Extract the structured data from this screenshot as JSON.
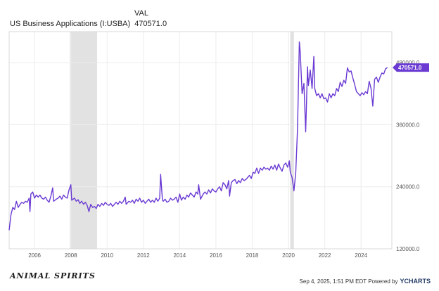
{
  "header": {
    "column_label": "VAL",
    "series_name": "US Business Applications (I:USBA)",
    "series_value": "470571.0"
  },
  "footer": {
    "brand_logo_text": "ANIMAL SPIRITS",
    "timestamp": "Sep 4, 2025, 1:51 PM EDT",
    "powered_by": "Powered by",
    "provider": "YCHARTS"
  },
  "colors": {
    "line": "#6a3ad3",
    "recession_shade": "#e2e2e2",
    "grid": "#ececec",
    "badge_bg": "#6a3ad3",
    "badge_text": "#ffffff"
  },
  "chart_data": {
    "type": "line",
    "title": "",
    "xlabel": "",
    "ylabel": "",
    "xlim": [
      2004.6,
      2025.7
    ],
    "ylim": [
      120000,
      540000
    ],
    "x_ticks": [
      "2006",
      "2008",
      "2010",
      "2012",
      "2014",
      "2016",
      "2018",
      "2020",
      "2022",
      "2024"
    ],
    "x_tick_values": [
      2006,
      2008,
      2010,
      2012,
      2014,
      2016,
      2018,
      2020,
      2022,
      2024
    ],
    "y_ticks": [
      "120000.0",
      "240000.0",
      "360000.0",
      "480000.0"
    ],
    "y_tick_values": [
      120000,
      240000,
      360000,
      480000
    ],
    "grid": true,
    "last_value_label": "470571.0",
    "last_value": 470571,
    "shaded_regions": [
      {
        "start": 2007.95,
        "end": 2009.45
      },
      {
        "start": 2020.1,
        "end": 2020.3
      }
    ],
    "series": [
      {
        "points": [
          [
            2004.6,
            156000
          ],
          [
            2004.7,
            186000
          ],
          [
            2004.8,
            200000
          ],
          [
            2004.9,
            196000
          ],
          [
            2005.0,
            212000
          ],
          [
            2005.1,
            200000
          ],
          [
            2005.2,
            206000
          ],
          [
            2005.3,
            210000
          ],
          [
            2005.4,
            208000
          ],
          [
            2005.5,
            212000
          ],
          [
            2005.6,
            210000
          ],
          [
            2005.7,
            218000
          ],
          [
            2005.75,
            192000
          ],
          [
            2005.8,
            226000
          ],
          [
            2005.9,
            230000
          ],
          [
            2006.0,
            218000
          ],
          [
            2006.1,
            224000
          ],
          [
            2006.2,
            220000
          ],
          [
            2006.3,
            224000
          ],
          [
            2006.4,
            218000
          ],
          [
            2006.5,
            216000
          ],
          [
            2006.6,
            220000
          ],
          [
            2006.7,
            214000
          ],
          [
            2006.8,
            210000
          ],
          [
            2006.9,
            222000
          ],
          [
            2007.0,
            238000
          ],
          [
            2007.05,
            212000
          ],
          [
            2007.2,
            216000
          ],
          [
            2007.3,
            218000
          ],
          [
            2007.4,
            222000
          ],
          [
            2007.5,
            216000
          ],
          [
            2007.6,
            224000
          ],
          [
            2007.7,
            220000
          ],
          [
            2007.8,
            218000
          ],
          [
            2007.9,
            234000
          ],
          [
            2008.0,
            244000
          ],
          [
            2008.05,
            214000
          ],
          [
            2008.2,
            218000
          ],
          [
            2008.3,
            212000
          ],
          [
            2008.4,
            215000
          ],
          [
            2008.5,
            208000
          ],
          [
            2008.6,
            212000
          ],
          [
            2008.7,
            206000
          ],
          [
            2008.8,
            210000
          ],
          [
            2008.9,
            204000
          ],
          [
            2009.0,
            192000
          ],
          [
            2009.1,
            206000
          ],
          [
            2009.2,
            200000
          ],
          [
            2009.3,
            202000
          ],
          [
            2009.4,
            198000
          ],
          [
            2009.5,
            206000
          ],
          [
            2009.6,
            202000
          ],
          [
            2009.7,
            208000
          ],
          [
            2009.8,
            204000
          ],
          [
            2009.9,
            210000
          ],
          [
            2010.0,
            206000
          ],
          [
            2010.1,
            204000
          ],
          [
            2010.2,
            208000
          ],
          [
            2010.3,
            202000
          ],
          [
            2010.4,
            206000
          ],
          [
            2010.5,
            210000
          ],
          [
            2010.6,
            206000
          ],
          [
            2010.7,
            212000
          ],
          [
            2010.8,
            208000
          ],
          [
            2010.9,
            212000
          ],
          [
            2011.0,
            220000
          ],
          [
            2011.05,
            206000
          ],
          [
            2011.2,
            212000
          ],
          [
            2011.3,
            210000
          ],
          [
            2011.4,
            214000
          ],
          [
            2011.5,
            208000
          ],
          [
            2011.6,
            216000
          ],
          [
            2011.7,
            212000
          ],
          [
            2011.8,
            218000
          ],
          [
            2011.9,
            210000
          ],
          [
            2012.0,
            214000
          ],
          [
            2012.1,
            208000
          ],
          [
            2012.2,
            212000
          ],
          [
            2012.3,
            216000
          ],
          [
            2012.4,
            210000
          ],
          [
            2012.5,
            214000
          ],
          [
            2012.6,
            210000
          ],
          [
            2012.7,
            218000
          ],
          [
            2012.8,
            212000
          ],
          [
            2012.9,
            218000
          ],
          [
            2012.95,
            264000
          ],
          [
            2013.05,
            214000
          ],
          [
            2013.1,
            212000
          ],
          [
            2013.2,
            216000
          ],
          [
            2013.3,
            210000
          ],
          [
            2013.4,
            212000
          ],
          [
            2013.5,
            218000
          ],
          [
            2013.6,
            214000
          ],
          [
            2013.7,
            216000
          ],
          [
            2013.8,
            220000
          ],
          [
            2013.9,
            210000
          ],
          [
            2014.0,
            226000
          ],
          [
            2014.1,
            214000
          ],
          [
            2014.2,
            220000
          ],
          [
            2014.3,
            216000
          ],
          [
            2014.4,
            224000
          ],
          [
            2014.5,
            220000
          ],
          [
            2014.6,
            228000
          ],
          [
            2014.7,
            224000
          ],
          [
            2014.8,
            220000
          ],
          [
            2014.9,
            230000
          ],
          [
            2015.0,
            226000
          ],
          [
            2015.05,
            244000
          ],
          [
            2015.15,
            216000
          ],
          [
            2015.3,
            226000
          ],
          [
            2015.4,
            230000
          ],
          [
            2015.5,
            226000
          ],
          [
            2015.6,
            234000
          ],
          [
            2015.7,
            228000
          ],
          [
            2015.8,
            236000
          ],
          [
            2015.9,
            232000
          ],
          [
            2016.0,
            230000
          ],
          [
            2016.1,
            236000
          ],
          [
            2016.2,
            240000
          ],
          [
            2016.3,
            232000
          ],
          [
            2016.4,
            248000
          ],
          [
            2016.5,
            244000
          ],
          [
            2016.6,
            236000
          ],
          [
            2016.7,
            252000
          ],
          [
            2016.75,
            222000
          ],
          [
            2016.85,
            248000
          ],
          [
            2016.95,
            252000
          ],
          [
            2017.05,
            254000
          ],
          [
            2017.15,
            246000
          ],
          [
            2017.25,
            252000
          ],
          [
            2017.35,
            248000
          ],
          [
            2017.45,
            256000
          ],
          [
            2017.55,
            252000
          ],
          [
            2017.65,
            254000
          ],
          [
            2017.75,
            258000
          ],
          [
            2017.85,
            262000
          ],
          [
            2017.95,
            256000
          ],
          [
            2018.05,
            268000
          ],
          [
            2018.15,
            266000
          ],
          [
            2018.25,
            276000
          ],
          [
            2018.35,
            266000
          ],
          [
            2018.45,
            276000
          ],
          [
            2018.55,
            272000
          ],
          [
            2018.65,
            278000
          ],
          [
            2018.75,
            274000
          ],
          [
            2018.85,
            276000
          ],
          [
            2018.95,
            272000
          ],
          [
            2019.05,
            280000
          ],
          [
            2019.15,
            274000
          ],
          [
            2019.25,
            282000
          ],
          [
            2019.35,
            272000
          ],
          [
            2019.45,
            284000
          ],
          [
            2019.55,
            276000
          ],
          [
            2019.65,
            270000
          ],
          [
            2019.75,
            282000
          ],
          [
            2019.85,
            286000
          ],
          [
            2019.95,
            278000
          ],
          [
            2020.05,
            290000
          ],
          [
            2020.1,
            268000
          ],
          [
            2020.2,
            258000
          ],
          [
            2020.3,
            232000
          ],
          [
            2020.4,
            268000
          ],
          [
            2020.5,
            352000
          ],
          [
            2020.6,
            520000
          ],
          [
            2020.65,
            500000
          ],
          [
            2020.75,
            420000
          ],
          [
            2020.85,
            440000
          ],
          [
            2020.95,
            346000
          ],
          [
            2021.05,
            472000
          ],
          [
            2021.1,
            436000
          ],
          [
            2021.2,
            466000
          ],
          [
            2021.3,
            430000
          ],
          [
            2021.4,
            492000
          ],
          [
            2021.45,
            430000
          ],
          [
            2021.55,
            416000
          ],
          [
            2021.65,
            420000
          ],
          [
            2021.75,
            412000
          ],
          [
            2021.85,
            420000
          ],
          [
            2021.95,
            410000
          ],
          [
            2022.05,
            412000
          ],
          [
            2022.15,
            404000
          ],
          [
            2022.25,
            420000
          ],
          [
            2022.35,
            412000
          ],
          [
            2022.45,
            420000
          ],
          [
            2022.55,
            416000
          ],
          [
            2022.65,
            430000
          ],
          [
            2022.75,
            424000
          ],
          [
            2022.85,
            442000
          ],
          [
            2022.95,
            434000
          ],
          [
            2023.05,
            446000
          ],
          [
            2023.15,
            440000
          ],
          [
            2023.25,
            470000
          ],
          [
            2023.35,
            462000
          ],
          [
            2023.45,
            464000
          ],
          [
            2023.55,
            450000
          ],
          [
            2023.65,
            438000
          ],
          [
            2023.75,
            424000
          ],
          [
            2023.85,
            420000
          ],
          [
            2023.95,
            416000
          ],
          [
            2024.05,
            422000
          ],
          [
            2024.15,
            418000
          ],
          [
            2024.25,
            424000
          ],
          [
            2024.35,
            420000
          ],
          [
            2024.45,
            444000
          ],
          [
            2024.55,
            430000
          ],
          [
            2024.65,
            396000
          ],
          [
            2024.75,
            448000
          ],
          [
            2024.85,
            452000
          ],
          [
            2024.95,
            442000
          ],
          [
            2025.05,
            452000
          ],
          [
            2025.15,
            460000
          ],
          [
            2025.25,
            458000
          ],
          [
            2025.35,
            468000
          ],
          [
            2025.45,
            470571
          ]
        ]
      }
    ]
  }
}
